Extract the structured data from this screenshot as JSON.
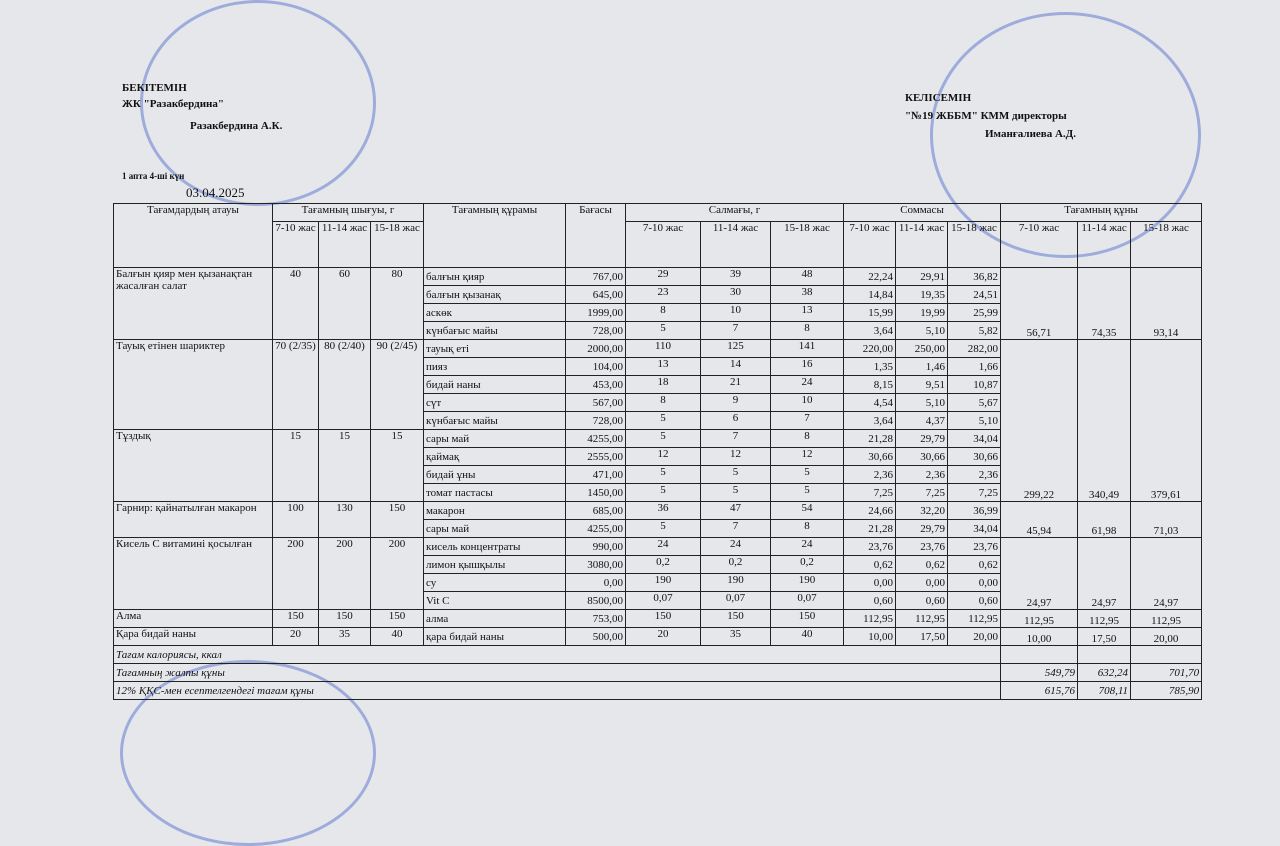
{
  "header": {
    "approved": {
      "title": "БЕКІТЕМІН",
      "org": "ЖК \"Разакбердина\"",
      "signer": "Разакбердина А.К.",
      "week_day": "1 апта 4-ші күн",
      "date": "03.04.2025"
    },
    "agreed": {
      "title": "КЕЛІСЕМІН",
      "org": "\"№19 ЖББМ\" КММ директоры",
      "signer": "Иманғалиева А.Д."
    }
  },
  "table": {
    "columns": {
      "name": "Тағамдардың атауы",
      "yield": "Тағамның шығуы, г",
      "ingredient": "Тағамның құрамы",
      "price": "Бағасы",
      "weight": "Салмағы, г",
      "sum": "Соммасы",
      "cost": "Тағамның құны",
      "ages": [
        "7-10 жас",
        "11-14 жас",
        "15-18 жас"
      ]
    },
    "blocks": [
      {
        "dishes": [
          {
            "name": "Балғын қияр мен қызанақтан жасалған салат",
            "yield": [
              "40",
              "60",
              "80"
            ],
            "ingredients": [
              {
                "name": "балғын қияр",
                "price": "767,00",
                "weight": [
                  "29",
                  "39",
                  "48"
                ],
                "sum": [
                  "22,24",
                  "29,91",
                  "36,82"
                ]
              },
              {
                "name": "балғын қызанақ",
                "price": "645,00",
                "weight": [
                  "23",
                  "30",
                  "38"
                ],
                "sum": [
                  "14,84",
                  "19,35",
                  "24,51"
                ]
              },
              {
                "name": "аскөк",
                "price": "1999,00",
                "weight": [
                  "8",
                  "10",
                  "13"
                ],
                "sum": [
                  "15,99",
                  "19,99",
                  "25,99"
                ]
              },
              {
                "name": "күнбағыс майы",
                "price": "728,00",
                "weight": [
                  "5",
                  "7",
                  "8"
                ],
                "sum": [
                  "3,64",
                  "5,10",
                  "5,82"
                ]
              }
            ]
          }
        ],
        "cost": [
          "56,71",
          "74,35",
          "93,14"
        ]
      },
      {
        "dishes": [
          {
            "name": "Тауық етінен шариктер",
            "yield": [
              "70 (2/35)",
              "80 (2/40)",
              "90 (2/45)"
            ],
            "ingredients": [
              {
                "name": "тауық еті",
                "price": "2000,00",
                "weight": [
                  "110",
                  "125",
                  "141"
                ],
                "sum": [
                  "220,00",
                  "250,00",
                  "282,00"
                ]
              },
              {
                "name": "пияз",
                "price": "104,00",
                "weight": [
                  "13",
                  "14",
                  "16"
                ],
                "sum": [
                  "1,35",
                  "1,46",
                  "1,66"
                ]
              },
              {
                "name": "бидай наны",
                "price": "453,00",
                "weight": [
                  "18",
                  "21",
                  "24"
                ],
                "sum": [
                  "8,15",
                  "9,51",
                  "10,87"
                ]
              },
              {
                "name": "сүт",
                "price": "567,00",
                "weight": [
                  "8",
                  "9",
                  "10"
                ],
                "sum": [
                  "4,54",
                  "5,10",
                  "5,67"
                ]
              },
              {
                "name": "күнбағыс майы",
                "price": "728,00",
                "weight": [
                  "5",
                  "6",
                  "7"
                ],
                "sum": [
                  "3,64",
                  "4,37",
                  "5,10"
                ]
              }
            ]
          },
          {
            "name": "Тұздық",
            "yield": [
              "15",
              "15",
              "15"
            ],
            "ingredients": [
              {
                "name": "сары май",
                "price": "4255,00",
                "weight": [
                  "5",
                  "7",
                  "8"
                ],
                "sum": [
                  "21,28",
                  "29,79",
                  "34,04"
                ]
              },
              {
                "name": "қаймақ",
                "price": "2555,00",
                "weight": [
                  "12",
                  "12",
                  "12"
                ],
                "sum": [
                  "30,66",
                  "30,66",
                  "30,66"
                ]
              },
              {
                "name": "бидай ұны",
                "price": "471,00",
                "weight": [
                  "5",
                  "5",
                  "5"
                ],
                "sum": [
                  "2,36",
                  "2,36",
                  "2,36"
                ]
              },
              {
                "name": "томат пастасы",
                "price": "1450,00",
                "weight": [
                  "5",
                  "5",
                  "5"
                ],
                "sum": [
                  "7,25",
                  "7,25",
                  "7,25"
                ]
              }
            ]
          }
        ],
        "cost": [
          "299,22",
          "340,49",
          "379,61"
        ]
      },
      {
        "dishes": [
          {
            "name": "Гарнир: қайнатылған макарон",
            "yield": [
              "100",
              "130",
              "150"
            ],
            "ingredients": [
              {
                "name": "макарон",
                "price": "685,00",
                "weight": [
                  "36",
                  "47",
                  "54"
                ],
                "sum": [
                  "24,66",
                  "32,20",
                  "36,99"
                ]
              },
              {
                "name": "сары май",
                "price": "4255,00",
                "weight": [
                  "5",
                  "7",
                  "8"
                ],
                "sum": [
                  "21,28",
                  "29,79",
                  "34,04"
                ]
              }
            ]
          }
        ],
        "cost": [
          "45,94",
          "61,98",
          "71,03"
        ]
      },
      {
        "dishes": [
          {
            "name": "Кисель С витамині қосылған",
            "yield": [
              "200",
              "200",
              "200"
            ],
            "ingredients": [
              {
                "name": "кисель концентраты",
                "price": "990,00",
                "weight": [
                  "24",
                  "24",
                  "24"
                ],
                "sum": [
                  "23,76",
                  "23,76",
                  "23,76"
                ]
              },
              {
                "name": "лимон қышқылы",
                "price": "3080,00",
                "weight": [
                  "0,2",
                  "0,2",
                  "0,2"
                ],
                "sum": [
                  "0,62",
                  "0,62",
                  "0,62"
                ]
              },
              {
                "name": "су",
                "price": "0,00",
                "weight": [
                  "190",
                  "190",
                  "190"
                ],
                "sum": [
                  "0,00",
                  "0,00",
                  "0,00"
                ]
              },
              {
                "name": "Vit C",
                "price": "8500,00",
                "weight": [
                  "0,07",
                  "0,07",
                  "0,07"
                ],
                "sum": [
                  "0,60",
                  "0,60",
                  "0,60"
                ]
              }
            ]
          }
        ],
        "cost": [
          "24,97",
          "24,97",
          "24,97"
        ]
      },
      {
        "dishes": [
          {
            "name": "Алма",
            "yield": [
              "150",
              "150",
              "150"
            ],
            "ingredients": [
              {
                "name": "алма",
                "price": "753,00",
                "weight": [
                  "150",
                  "150",
                  "150"
                ],
                "sum": [
                  "112,95",
                  "112,95",
                  "112,95"
                ]
              }
            ]
          }
        ],
        "cost": [
          "112,95",
          "112,95",
          "112,95"
        ]
      },
      {
        "dishes": [
          {
            "name": "Қара бидай наны",
            "yield": [
              "20",
              "35",
              "40"
            ],
            "ingredients": [
              {
                "name": "қара бидай наны",
                "price": "500,00",
                "weight": [
                  "20",
                  "35",
                  "40"
                ],
                "sum": [
                  "10,00",
                  "17,50",
                  "20,00"
                ]
              }
            ]
          }
        ],
        "cost": [
          "10,00",
          "17,50",
          "20,00"
        ]
      }
    ],
    "footer": [
      {
        "label": "Тағам калориясы, ккал"
      },
      {
        "label": "Тағамның жалпы құны",
        "values": [
          "549,79",
          "632,24",
          "701,70"
        ]
      },
      {
        "label": "12% ҚҚС-мен есептелгендегі тағам құны",
        "values": [
          "615,76",
          "708,11",
          "785,90"
        ]
      }
    ]
  }
}
